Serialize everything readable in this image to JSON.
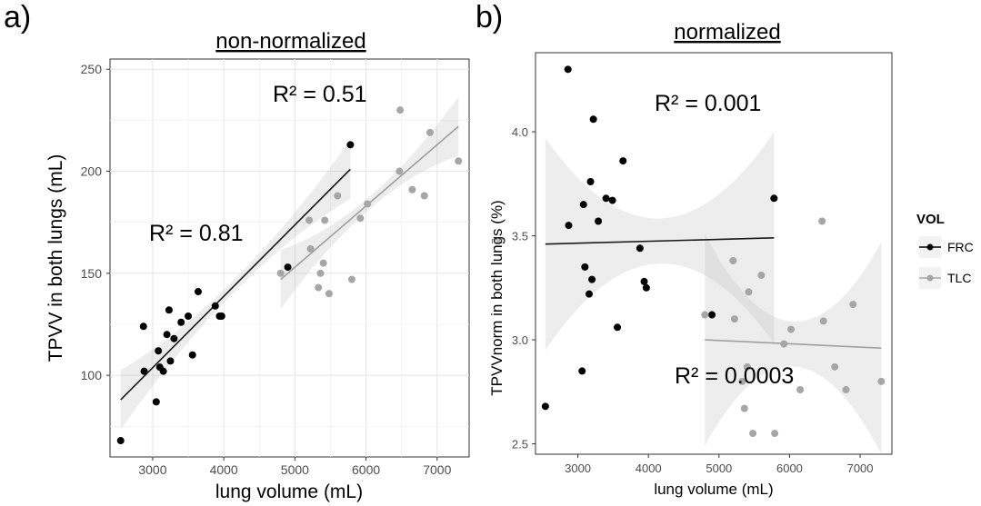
{
  "chart_data": [
    {
      "type": "scatter",
      "panel_label": "a)",
      "title": "non-normalized",
      "xlabel": "lung volume (mL)",
      "ylabel": "TPVV in both lungs (mL)",
      "xlim": [
        2400,
        7450
      ],
      "ylim": [
        60,
        255
      ],
      "xticks": [
        3000,
        4000,
        5000,
        6000,
        7000
      ],
      "yticks": [
        100,
        150,
        200,
        250
      ],
      "grid": true,
      "series": [
        {
          "name": "FRC",
          "color": "#000000",
          "points": [
            [
              2550,
              68
            ],
            [
              2870,
              124
            ],
            [
              2880,
              102
            ],
            [
              3050,
              87
            ],
            [
              3080,
              112
            ],
            [
              3100,
              104
            ],
            [
              3150,
              102
            ],
            [
              3200,
              120
            ],
            [
              3230,
              132
            ],
            [
              3250,
              107
            ],
            [
              3300,
              118
            ],
            [
              3400,
              126
            ],
            [
              3500,
              129
            ],
            [
              3560,
              110
            ],
            [
              3640,
              141
            ],
            [
              3880,
              134
            ],
            [
              3940,
              129
            ],
            [
              3970,
              129
            ],
            [
              4900,
              153
            ],
            [
              5780,
              213
            ]
          ],
          "fit": {
            "x": [
              2550,
              5780
            ],
            "y": [
              88,
              201
            ]
          },
          "r2_label": "R² = 0.81"
        },
        {
          "name": "TLC",
          "color": "#a6a6a6",
          "points": [
            [
              4800,
              150
            ],
            [
              5200,
              176
            ],
            [
              5220,
              162
            ],
            [
              5330,
              143
            ],
            [
              5360,
              150
            ],
            [
              5400,
              155
            ],
            [
              5420,
              176
            ],
            [
              5480,
              140
            ],
            [
              5600,
              188
            ],
            [
              5800,
              147
            ],
            [
              5920,
              177
            ],
            [
              6020,
              184
            ],
            [
              6470,
              200
            ],
            [
              6480,
              230
            ],
            [
              6650,
              191
            ],
            [
              6820,
              188
            ],
            [
              6900,
              219
            ],
            [
              7300,
              205
            ]
          ],
          "fit": {
            "x": [
              4800,
              7300
            ],
            "y": [
              147,
              222
            ]
          },
          "r2_label": "R² = 0.51"
        }
      ]
    },
    {
      "type": "scatter",
      "panel_label": "b)",
      "title": "normalized",
      "xlabel": "lung volume (mL)",
      "ylabel": "TPVVnorm in both lungs (%)",
      "ylabel_superscript": "mm",
      "xlim": [
        2400,
        7450
      ],
      "ylim": [
        2.45,
        4.38
      ],
      "xticks": [
        3000,
        4000,
        5000,
        6000,
        7000
      ],
      "yticks": [
        2.5,
        3.0,
        3.5,
        4.0
      ],
      "grid": false,
      "series": [
        {
          "name": "FRC",
          "color": "#000000",
          "points": [
            [
              2540,
              2.68
            ],
            [
              2860,
              4.3
            ],
            [
              2870,
              3.55
            ],
            [
              3060,
              2.85
            ],
            [
              3080,
              3.65
            ],
            [
              3100,
              3.35
            ],
            [
              3160,
              3.22
            ],
            [
              3180,
              3.76
            ],
            [
              3200,
              3.29
            ],
            [
              3220,
              4.06
            ],
            [
              3290,
              3.57
            ],
            [
              3400,
              3.68
            ],
            [
              3490,
              3.67
            ],
            [
              3560,
              3.06
            ],
            [
              3640,
              3.86
            ],
            [
              3880,
              3.44
            ],
            [
              3940,
              3.28
            ],
            [
              3970,
              3.25
            ],
            [
              4900,
              3.12
            ],
            [
              5780,
              3.68
            ]
          ],
          "fit": {
            "x": [
              2540,
              5780
            ],
            "y": [
              3.46,
              3.49
            ]
          },
          "r2_label": "R² = 0.001"
        },
        {
          "name": "TLC",
          "color": "#a6a6a6",
          "points": [
            [
              4800,
              3.12
            ],
            [
              5200,
              3.38
            ],
            [
              5220,
              3.1
            ],
            [
              5330,
              2.8
            ],
            [
              5360,
              2.67
            ],
            [
              5400,
              2.87
            ],
            [
              5420,
              3.23
            ],
            [
              5480,
              2.55
            ],
            [
              5600,
              3.31
            ],
            [
              5790,
              2.55
            ],
            [
              5920,
              2.98
            ],
            [
              6020,
              3.05
            ],
            [
              6460,
              3.57
            ],
            [
              6480,
              3.09
            ],
            [
              6640,
              2.87
            ],
            [
              6800,
              2.76
            ],
            [
              6900,
              3.17
            ],
            [
              7300,
              2.8
            ],
            [
              6150,
              2.76
            ]
          ],
          "fit": {
            "x": [
              4800,
              7300
            ],
            "y": [
              3.0,
              2.96
            ]
          },
          "r2_label": "R² = 0.0003"
        }
      ]
    }
  ],
  "legend": {
    "title": "VOL",
    "placement": "right",
    "items": [
      {
        "label": "FRC",
        "color": "#000000"
      },
      {
        "label": "TLC",
        "color": "#a6a6a6"
      }
    ]
  }
}
